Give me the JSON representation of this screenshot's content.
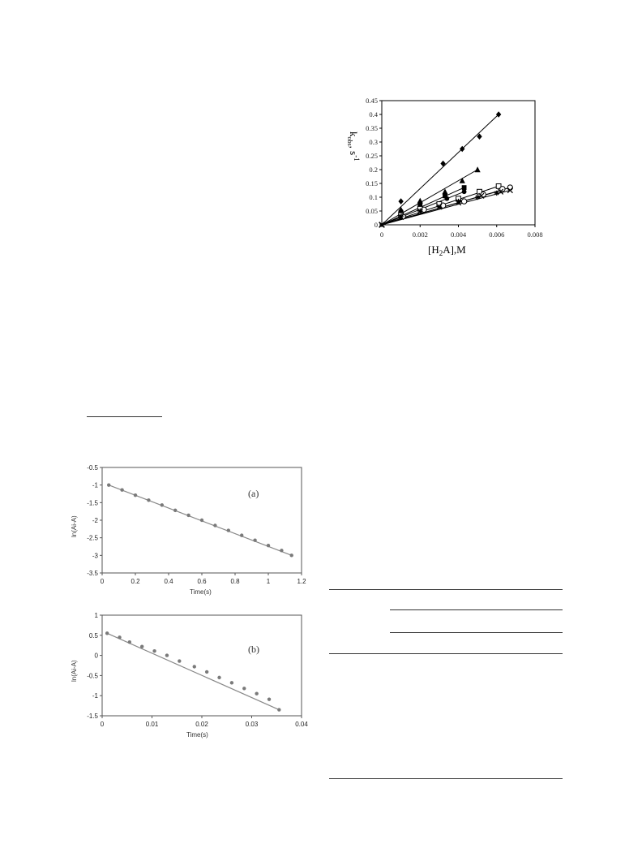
{
  "chart_data": [
    {
      "type": "scatter",
      "ylabel": "k",
      "ylabel_sub": "obs",
      "ylabel_unit": ", s",
      "ylabel_exp": "-1",
      "xlabel_main": "[H",
      "xlabel_sub": "2",
      "xlabel_rest": "A],M",
      "xlim": [
        0,
        0.008
      ],
      "ylim": [
        0,
        0.45
      ],
      "x_ticks": [
        "0",
        "0.002",
        "0.004",
        "0.006",
        "0.008"
      ],
      "y_ticks": [
        "0",
        "0.05",
        "0.1",
        "0.15",
        "0.2",
        "0.25",
        "0.3",
        "0.35",
        "0.4",
        "0.45"
      ],
      "series": [
        {
          "marker": "diamond",
          "x": [
            0,
            0.001,
            0.0032,
            0.0042,
            0.0051,
            0.0061
          ],
          "y": [
            0,
            0.085,
            0.222,
            0.275,
            0.32,
            0.4
          ]
        },
        {
          "marker": "triangle",
          "x": [
            0,
            0.001,
            0.002,
            0.0033,
            0.0042,
            0.005
          ],
          "y": [
            0,
            0.055,
            0.087,
            0.12,
            0.16,
            0.2
          ]
        },
        {
          "marker": "square",
          "x": [
            0,
            0.001,
            0.002,
            0.0033,
            0.0043
          ],
          "y": [
            0,
            0.045,
            0.075,
            0.105,
            0.135
          ]
        },
        {
          "marker": "circle",
          "x": [
            0,
            0.001,
            0.002,
            0.0034,
            0.0043
          ],
          "y": [
            0,
            0.05,
            0.065,
            0.095,
            0.12
          ]
        },
        {
          "marker": "open-square",
          "x": [
            0,
            0.001,
            0.002,
            0.003,
            0.004,
            0.0051,
            0.0061
          ],
          "y": [
            0,
            0.035,
            0.058,
            0.075,
            0.095,
            0.12,
            0.14
          ]
        },
        {
          "marker": "open-circle",
          "x": [
            0,
            0.0011,
            0.0022,
            0.0032,
            0.0043,
            0.0053,
            0.0063,
            0.0067
          ],
          "y": [
            0,
            0.03,
            0.055,
            0.07,
            0.085,
            0.11,
            0.13,
            0.135
          ]
        },
        {
          "marker": "star",
          "x": [
            0,
            0.001,
            0.002,
            0.003,
            0.004,
            0.005,
            0.006
          ],
          "y": [
            0,
            0.03,
            0.05,
            0.065,
            0.085,
            0.1,
            0.115
          ]
        },
        {
          "marker": "cross",
          "x": [
            0,
            0.001,
            0.002,
            0.003,
            0.004,
            0.0052,
            0.0062,
            0.0067
          ],
          "y": [
            0,
            0.028,
            0.048,
            0.065,
            0.08,
            0.105,
            0.12,
            0.125
          ]
        }
      ],
      "fit_lines": [
        {
          "x": [
            0,
            0.0061
          ],
          "y": [
            0,
            0.4
          ]
        },
        {
          "x": [
            0,
            0.005
          ],
          "y": [
            0,
            0.2
          ]
        },
        {
          "x": [
            0,
            0.0043
          ],
          "y": [
            0,
            0.135
          ]
        },
        {
          "x": [
            0,
            0.0043
          ],
          "y": [
            0,
            0.12
          ]
        },
        {
          "x": [
            0,
            0.0061
          ],
          "y": [
            0,
            0.14
          ]
        },
        {
          "x": [
            0,
            0.0067
          ],
          "y": [
            0,
            0.135
          ]
        },
        {
          "x": [
            0,
            0.006
          ],
          "y": [
            0,
            0.12
          ]
        },
        {
          "x": [
            0,
            0.0067
          ],
          "y": [
            0,
            0.125
          ]
        }
      ]
    },
    {
      "type": "scatter",
      "panel_label": "(a)",
      "xlabel": "Time(s)",
      "ylabel": "ln(Ai-A)",
      "xlim": [
        0,
        1.2
      ],
      "ylim": [
        -3.5,
        -0.5
      ],
      "x_ticks": [
        "0",
        "0.2",
        "0.4",
        "0.6",
        "0.8",
        "1",
        "1.2"
      ],
      "y_ticks": [
        "-0.5",
        "-1",
        "-1.5",
        "-2",
        "-2.5",
        "-3",
        "-3.5"
      ],
      "x": [
        0.04,
        0.12,
        0.2,
        0.28,
        0.36,
        0.44,
        0.52,
        0.6,
        0.68,
        0.76,
        0.84,
        0.92,
        1.0,
        1.08,
        1.14
      ],
      "y": [
        -1.0,
        -1.14,
        -1.29,
        -1.43,
        -1.57,
        -1.72,
        -1.86,
        -2.0,
        -2.15,
        -2.29,
        -2.43,
        -2.57,
        -2.72,
        -2.86,
        -3.0
      ],
      "fit": {
        "x": [
          0.04,
          1.14
        ],
        "y": [
          -1.0,
          -3.0
        ]
      }
    },
    {
      "type": "scatter",
      "panel_label": "(b)",
      "xlabel": "Time(s)",
      "ylabel": "ln(Ai-A)",
      "xlim": [
        0,
        0.04
      ],
      "ylim": [
        -1.5,
        1.0
      ],
      "x_ticks": [
        "0",
        "0.01",
        "0.02",
        "0.03",
        "0.04"
      ],
      "y_ticks": [
        "1",
        "0.5",
        "0",
        "-0.5",
        "-1",
        "-1.5"
      ],
      "x": [
        0.001,
        0.0035,
        0.0055,
        0.008,
        0.0105,
        0.013,
        0.0155,
        0.0185,
        0.021,
        0.0235,
        0.026,
        0.0285,
        0.031,
        0.0335,
        0.0355
      ],
      "y": [
        0.55,
        0.45,
        0.33,
        0.22,
        0.11,
        0.0,
        -0.14,
        -0.28,
        -0.41,
        -0.55,
        -0.68,
        -0.82,
        -0.95,
        -1.09,
        -1.35
      ],
      "fit": {
        "x": [
          0.001,
          0.0355
        ],
        "y": [
          0.55,
          -1.35
        ]
      }
    }
  ]
}
